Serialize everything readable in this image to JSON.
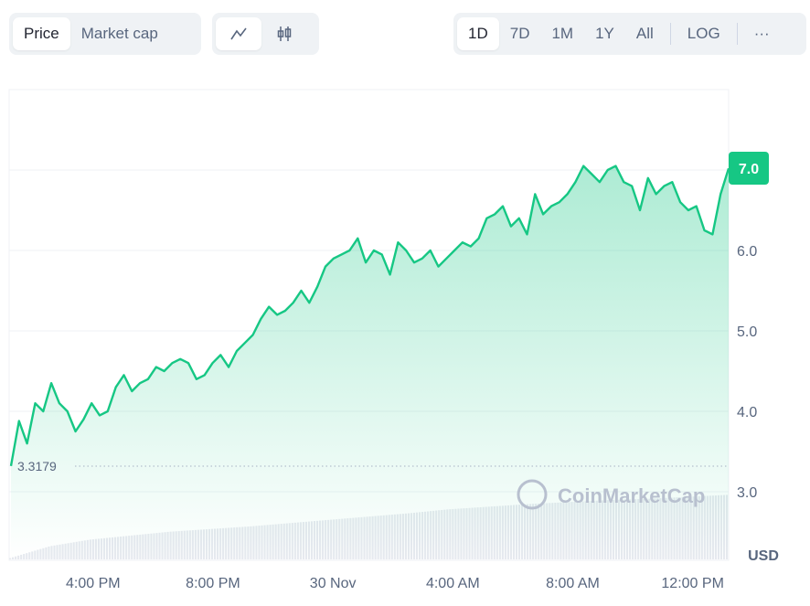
{
  "toolbar": {
    "metric_tabs": [
      "Price",
      "Market cap"
    ],
    "chart_type": [
      "line-chart-icon",
      "candlestick-icon"
    ],
    "ranges": [
      "1D",
      "7D",
      "1M",
      "1Y",
      "All"
    ],
    "log_label": "LOG",
    "more_label": "···"
  },
  "watermark": "CoinMarketCap",
  "colors": {
    "line": "#16c784",
    "badge": "#16c784",
    "grid": "#eff2f5",
    "volume": "#e6e9ef"
  },
  "chart_data": {
    "type": "line",
    "title": "",
    "xlabel": "",
    "ylabel": "USD",
    "currency_label": "USD",
    "ylim": [
      2.5,
      8.0
    ],
    "yticks": [
      3.0,
      4.0,
      5.0,
      6.0,
      7.0
    ],
    "ytick_labels": [
      "3.0",
      "4.0",
      "5.0",
      "6.0"
    ],
    "current_price_label": "7.0",
    "open_price_label": "3.3179",
    "open_price": 3.3179,
    "x_range_hours": [
      0,
      24
    ],
    "xticks": [
      {
        "hour": 2.8,
        "label": "4:00 PM"
      },
      {
        "hour": 6.8,
        "label": "8:00 PM"
      },
      {
        "hour": 10.8,
        "label": "30 Nov"
      },
      {
        "hour": 14.8,
        "label": "4:00 AM"
      },
      {
        "hour": 18.8,
        "label": "8:00 AM"
      },
      {
        "hour": 22.8,
        "label": "12:00 PM"
      }
    ],
    "series": [
      {
        "name": "Price",
        "values": [
          3.32,
          3.88,
          3.6,
          4.1,
          4.0,
          4.35,
          4.1,
          4.0,
          3.75,
          3.9,
          4.1,
          3.95,
          4.0,
          4.3,
          4.45,
          4.25,
          4.35,
          4.4,
          4.55,
          4.5,
          4.6,
          4.65,
          4.6,
          4.4,
          4.45,
          4.6,
          4.7,
          4.55,
          4.75,
          4.85,
          4.95,
          5.15,
          5.3,
          5.2,
          5.25,
          5.35,
          5.5,
          5.35,
          5.55,
          5.8,
          5.9,
          5.95,
          6.0,
          6.15,
          5.85,
          6.0,
          5.95,
          5.7,
          6.1,
          6.0,
          5.85,
          5.9,
          6.0,
          5.8,
          5.9,
          6.0,
          6.1,
          6.05,
          6.15,
          6.4,
          6.45,
          6.55,
          6.3,
          6.4,
          6.2,
          6.7,
          6.45,
          6.55,
          6.6,
          6.7,
          6.85,
          7.05,
          6.95,
          6.85,
          7.0,
          7.05,
          6.85,
          6.8,
          6.5,
          6.9,
          6.7,
          6.8,
          6.85,
          6.6,
          6.5,
          6.55,
          6.25,
          6.2,
          6.7,
          7.02
        ]
      }
    ],
    "volume_relative": [
      0.02,
      0.2,
      0.3,
      0.36,
      0.42,
      0.46,
      0.5,
      0.55,
      0.6,
      0.65,
      0.7,
      0.76,
      0.8,
      0.84,
      0.87,
      0.9,
      0.92,
      0.95,
      0.98
    ]
  }
}
